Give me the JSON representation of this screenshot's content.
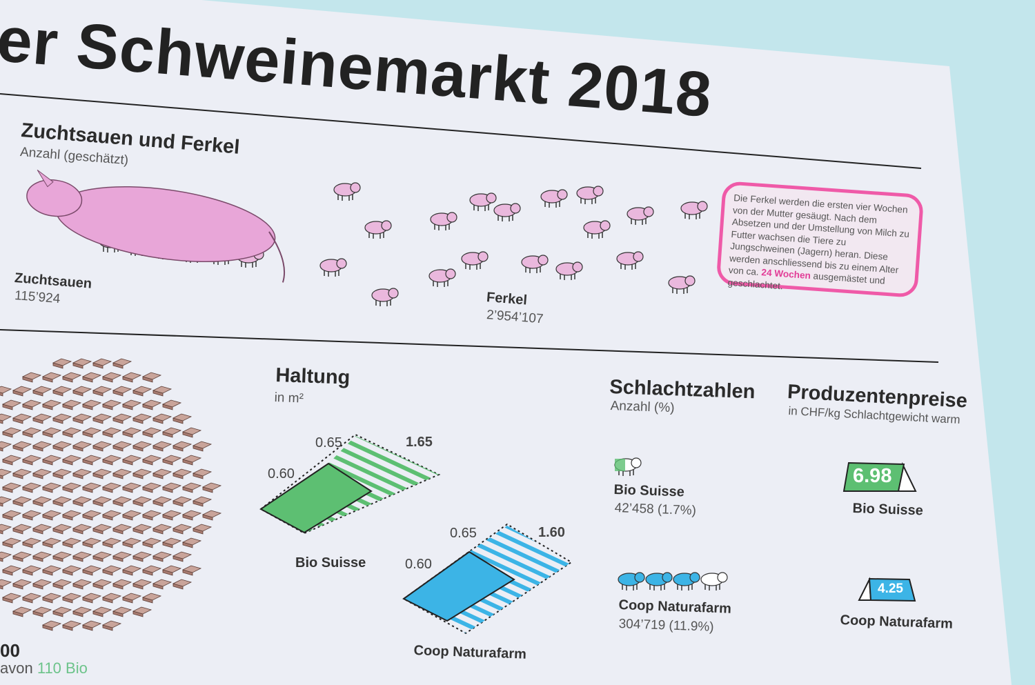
{
  "title": "er Schweinemarkt 2018",
  "breeding": {
    "heading": "Zuchtsauen und Ferkel",
    "subheading": "Anzahl (geschätzt)",
    "sows_label": "Zuchtsauen",
    "sows_value": "115’924",
    "piglets_label": "Ferkel",
    "piglets_value": "2’954’107",
    "info_before": "Die Ferkel werden die ersten vier Wochen von der Mutter gesäugt. Nach dem Absetzen und der Umstellung von Milch zu Futter wachsen die Tiere zu Jungschweinen (Jagern) heran. Diese werden anschliessend bis zu einem Alter von ca. ",
    "info_highlight": "24 Wochen",
    "info_after": " ausgemästet und geschlachtet."
  },
  "farms": {
    "total_partial": "00",
    "sub_prefix": "avon",
    "sub_bio": "110 Bio",
    "icon": "barn-icon"
  },
  "housing": {
    "heading": "Haltung",
    "unit": "in m²",
    "bio": {
      "label": "Bio Suisse",
      "indoor_depth": "0.65",
      "total": "1.65",
      "indoor_width": "0.60"
    },
    "coop": {
      "label": "Coop Naturafarm",
      "indoor_depth": "0.65",
      "total": "1.60",
      "indoor_width": "0.60"
    }
  },
  "slaughter": {
    "heading": "Schlachtzahlen",
    "unit": "Anzahl (%)",
    "bio": {
      "label": "Bio Suisse",
      "value": "42’458 (1.7%)",
      "icon": "pig-icon"
    },
    "coop": {
      "label": "Coop Naturafarm",
      "value": "304’719 (11.9%)",
      "icon": "pig-icon"
    }
  },
  "prices": {
    "heading": "Produzentenpreise",
    "unit": "in CHF/kg Schlachtgewicht warm",
    "bio": {
      "label": "Bio Suisse",
      "value": "6.98",
      "icon": "price-tag-icon"
    },
    "coop": {
      "label": "Coop Naturafarm",
      "value": "4.25",
      "icon": "price-tag-icon"
    }
  },
  "colors": {
    "background": "#c3e6ec",
    "poster": "#eceef5",
    "pink": "#e8a6d8",
    "magenta": "#ef5aa8",
    "bio_green": "#5dbf72",
    "coop_blue": "#3cb4e6",
    "brick": "#a77b70"
  }
}
